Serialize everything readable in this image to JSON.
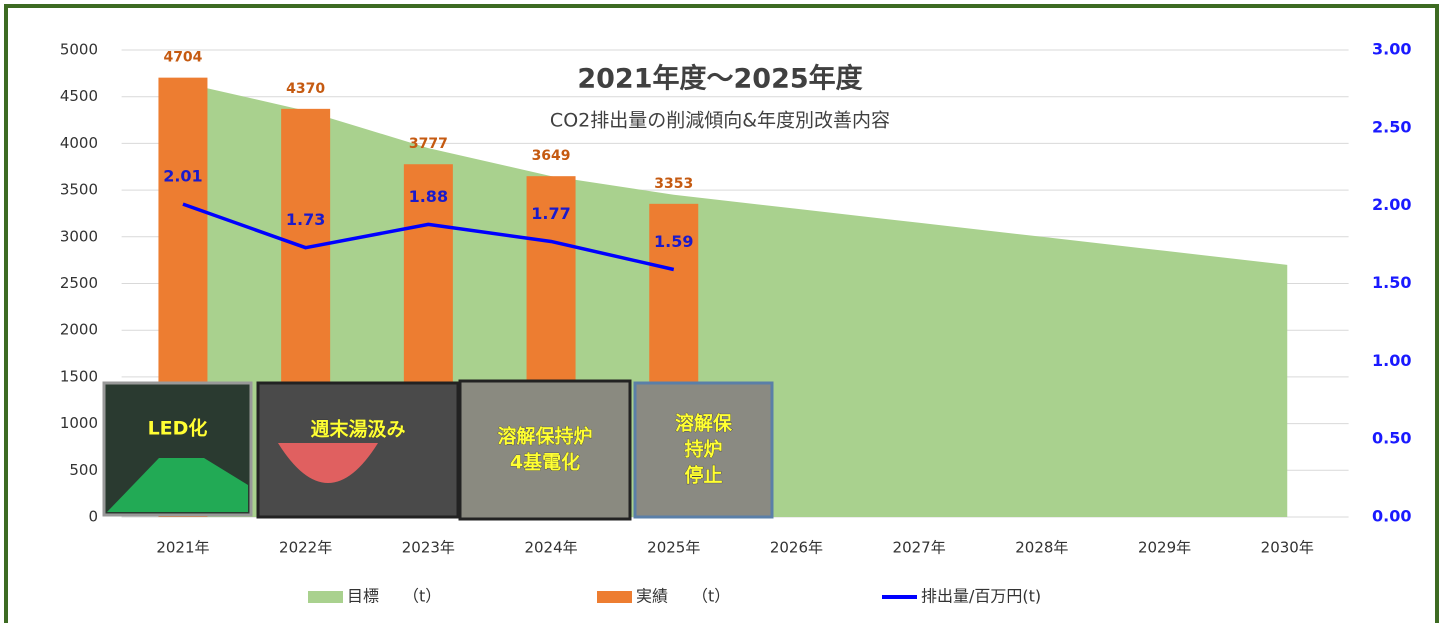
{
  "chart_data": {
    "type": "combo",
    "title": "2021年度～2025年度",
    "subtitle": "CO2排出量の削減傾向&年度別改善内容",
    "categories": [
      "2021年",
      "2022年",
      "2023年",
      "2024年",
      "2025年",
      "2026年",
      "2027年",
      "2028年",
      "2029年",
      "2030年"
    ],
    "series": [
      {
        "name": "目標　　（t）",
        "type": "area",
        "color": "#a9d18e",
        "values": [
          4650,
          4350,
          3950,
          3650,
          3450,
          3300,
          3150,
          3000,
          2850,
          2700
        ]
      },
      {
        "name": "実績　　（t）",
        "type": "bar",
        "color": "#ed7d31",
        "label_color": "#c55a11",
        "values": [
          4704,
          4370,
          3777,
          3649,
          3353,
          null,
          null,
          null,
          null,
          null
        ]
      },
      {
        "name": "排出量/百万円(t)",
        "type": "line",
        "axis": "y2",
        "color": "#0000ff",
        "label_color": "#1a1acc",
        "values": [
          2.01,
          1.73,
          1.88,
          1.77,
          1.59,
          null,
          null,
          null,
          null,
          null
        ]
      }
    ],
    "ylim": [
      0,
      5000
    ],
    "yticks": [
      0,
      500,
      1000,
      1500,
      2000,
      2500,
      3000,
      3500,
      4000,
      4500,
      5000
    ],
    "y2lim": [
      0,
      3
    ],
    "y2ticks": [
      {
        "value": 0,
        "label": "0.00"
      },
      {
        "value": 0.5,
        "label": "0.50"
      },
      {
        "value": 1,
        "label": "1.00"
      },
      {
        "value": 1.5,
        "label": "1.50"
      },
      {
        "value": 2,
        "label": "2.00"
      },
      {
        "value": 2.5,
        "label": "2.50"
      },
      {
        "value": 3,
        "label": "3.00"
      }
    ],
    "grid": true,
    "legend": "bottom",
    "annotations": [
      [
        "LED化"
      ],
      [
        "週末湯汲み"
      ],
      [
        "溶解保持炉",
        "4基電化"
      ],
      [
        "溶解保",
        "持炉",
        "停止"
      ]
    ]
  }
}
